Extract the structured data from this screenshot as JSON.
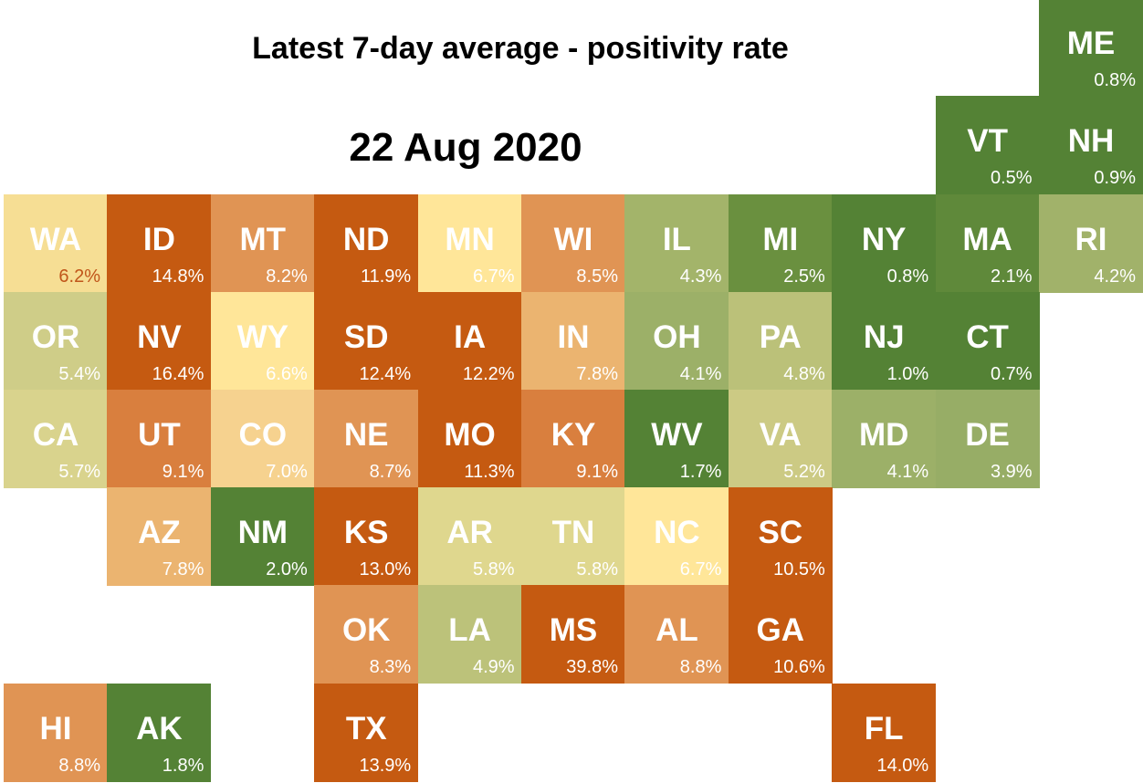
{
  "header": {
    "title": "Latest 7-day average - positivity rate",
    "date": "22 Aug 2020"
  },
  "states": [
    {
      "code": "ME",
      "rate": "0.8%",
      "col": 10,
      "row": 0,
      "color": "#548235"
    },
    {
      "code": "VT",
      "rate": "0.5%",
      "col": 9,
      "row": 1,
      "color": "#548235"
    },
    {
      "code": "NH",
      "rate": "0.9%",
      "col": 10,
      "row": 1,
      "color": "#548235"
    },
    {
      "code": "WA",
      "rate": "6.2%",
      "col": 0,
      "row": 2,
      "color": "#f6de94"
    },
    {
      "code": "ID",
      "rate": "14.8%",
      "col": 1,
      "row": 2,
      "color": "#c55a11"
    },
    {
      "code": "MT",
      "rate": "8.2%",
      "col": 2,
      "row": 2,
      "color": "#e09454"
    },
    {
      "code": "ND",
      "rate": "11.9%",
      "col": 3,
      "row": 2,
      "color": "#c55a11"
    },
    {
      "code": "MN",
      "rate": "6.7%",
      "col": 4,
      "row": 2,
      "color": "#ffe699"
    },
    {
      "code": "WI",
      "rate": "8.5%",
      "col": 5,
      "row": 2,
      "color": "#e09454"
    },
    {
      "code": "IL",
      "rate": "4.3%",
      "col": 6,
      "row": 2,
      "color": "#a3b46a"
    },
    {
      "code": "MI",
      "rate": "2.5%",
      "col": 7,
      "row": 2,
      "color": "#6a903f"
    },
    {
      "code": "NY",
      "rate": "0.8%",
      "col": 8,
      "row": 2,
      "color": "#548235"
    },
    {
      "code": "MA",
      "rate": "2.1%",
      "col": 9,
      "row": 2,
      "color": "#5f893a"
    },
    {
      "code": "RI",
      "rate": "4.2%",
      "col": 10,
      "row": 2,
      "color": "#a1b26a"
    },
    {
      "code": "OR",
      "rate": "5.4%",
      "col": 0,
      "row": 3,
      "color": "#cfcd88"
    },
    {
      "code": "NV",
      "rate": "16.4%",
      "col": 1,
      "row": 3,
      "color": "#c55a11"
    },
    {
      "code": "WY",
      "rate": "6.6%",
      "col": 2,
      "row": 3,
      "color": "#ffe699"
    },
    {
      "code": "SD",
      "rate": "12.4%",
      "col": 3,
      "row": 3,
      "color": "#c55a11"
    },
    {
      "code": "IA",
      "rate": "12.2%",
      "col": 4,
      "row": 3,
      "color": "#c55a11"
    },
    {
      "code": "IN",
      "rate": "7.8%",
      "col": 5,
      "row": 3,
      "color": "#ebb470"
    },
    {
      "code": "OH",
      "rate": "4.1%",
      "col": 6,
      "row": 3,
      "color": "#9cb068"
    },
    {
      "code": "PA",
      "rate": "4.8%",
      "col": 7,
      "row": 3,
      "color": "#bbc179"
    },
    {
      "code": "NJ",
      "rate": "1.0%",
      "col": 8,
      "row": 3,
      "color": "#548235"
    },
    {
      "code": "CT",
      "rate": "0.7%",
      "col": 9,
      "row": 3,
      "color": "#548235"
    },
    {
      "code": "CA",
      "rate": "5.7%",
      "col": 0,
      "row": 4,
      "color": "#d9d38d"
    },
    {
      "code": "UT",
      "rate": "9.1%",
      "col": 1,
      "row": 4,
      "color": "#d97f3e"
    },
    {
      "code": "CO",
      "rate": "7.0%",
      "col": 2,
      "row": 4,
      "color": "#f6d28f"
    },
    {
      "code": "NE",
      "rate": "8.7%",
      "col": 3,
      "row": 4,
      "color": "#e09454"
    },
    {
      "code": "MO",
      "rate": "11.3%",
      "col": 4,
      "row": 4,
      "color": "#c55a11"
    },
    {
      "code": "KY",
      "rate": "9.1%",
      "col": 5,
      "row": 4,
      "color": "#d97f3e"
    },
    {
      "code": "WV",
      "rate": "1.7%",
      "col": 6,
      "row": 4,
      "color": "#548235"
    },
    {
      "code": "VA",
      "rate": "5.2%",
      "col": 7,
      "row": 4,
      "color": "#ccca84"
    },
    {
      "code": "MD",
      "rate": "4.1%",
      "col": 8,
      "row": 4,
      "color": "#9cb068"
    },
    {
      "code": "DE",
      "rate": "3.9%",
      "col": 9,
      "row": 4,
      "color": "#97ad66"
    },
    {
      "code": "AZ",
      "rate": "7.8%",
      "col": 1,
      "row": 5,
      "color": "#ebb470"
    },
    {
      "code": "NM",
      "rate": "2.0%",
      "col": 2,
      "row": 5,
      "color": "#548235"
    },
    {
      "code": "KS",
      "rate": "13.0%",
      "col": 3,
      "row": 5,
      "color": "#c55a11"
    },
    {
      "code": "AR",
      "rate": "5.8%",
      "col": 4,
      "row": 5,
      "color": "#dfd78e"
    },
    {
      "code": "TN",
      "rate": "5.8%",
      "col": 5,
      "row": 5,
      "color": "#dfd78e"
    },
    {
      "code": "NC",
      "rate": "6.7%",
      "col": 6,
      "row": 5,
      "color": "#ffe699"
    },
    {
      "code": "SC",
      "rate": "10.5%",
      "col": 7,
      "row": 5,
      "color": "#c55a11"
    },
    {
      "code": "OK",
      "rate": "8.3%",
      "col": 3,
      "row": 6,
      "color": "#e09454"
    },
    {
      "code": "LA",
      "rate": "4.9%",
      "col": 4,
      "row": 6,
      "color": "#bcc27a"
    },
    {
      "code": "MS",
      "rate": "39.8%",
      "col": 5,
      "row": 6,
      "color": "#c55a11"
    },
    {
      "code": "AL",
      "rate": "8.8%",
      "col": 6,
      "row": 6,
      "color": "#e09454"
    },
    {
      "code": "GA",
      "rate": "10.6%",
      "col": 7,
      "row": 6,
      "color": "#c55a11"
    },
    {
      "code": "HI",
      "rate": "8.8%",
      "col": 0,
      "row": 7,
      "color": "#e09454"
    },
    {
      "code": "AK",
      "rate": "1.8%",
      "col": 1,
      "row": 7,
      "color": "#548235"
    },
    {
      "code": "TX",
      "rate": "13.9%",
      "col": 3,
      "row": 7,
      "color": "#c55a11"
    },
    {
      "code": "FL",
      "rate": "14.0%",
      "col": 8,
      "row": 7,
      "color": "#c55a11"
    }
  ],
  "colors": {
    "background": "#ffffff",
    "text": "#000000",
    "tile_text": "#ffffff",
    "wa_rate_text": "#c0551a"
  }
}
